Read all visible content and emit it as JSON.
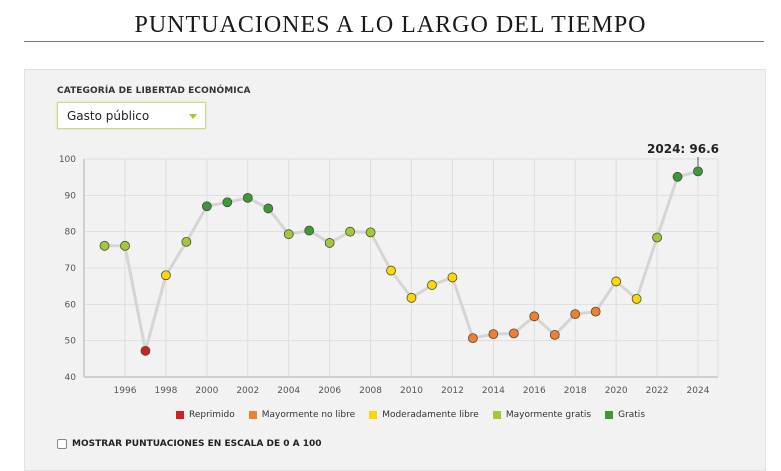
{
  "page": {
    "title": "PUNTUACIONES A LO LARGO DEL TIEMPO"
  },
  "filter": {
    "label": "CATEGORÍA DE LIBERTAD ECONÓMICA",
    "selected": "Gasto público"
  },
  "scale_toggle": {
    "label": "MOSTRAR PUNTUACIONES EN ESCALA DE 0 A 100",
    "checked": false
  },
  "colors": {
    "Reprimido": "#cc2222",
    "Mayormente no libre": "#f08030",
    "Moderadamente libre": "#ffd700",
    "Mayormente gratis": "#a3c93a",
    "Gratis": "#3a9a3a"
  },
  "chart_data": {
    "type": "line",
    "title": "PUNTUACIONES A LO LARGO DEL TIEMPO",
    "xlabel": "",
    "ylabel": "",
    "ylim": [
      40,
      100
    ],
    "xlim": [
      1994.5,
      2025
    ],
    "yticks": [
      40,
      50,
      60,
      70,
      80,
      90,
      100
    ],
    "xticks": [
      1996,
      1998,
      2000,
      2002,
      2004,
      2006,
      2008,
      2010,
      2012,
      2014,
      2016,
      2018,
      2020,
      2022,
      2024
    ],
    "grid": true,
    "legend_position": "bottom",
    "annotation": "2024: 96.6",
    "legend": [
      "Reprimido",
      "Mayormente no libre",
      "Moderadamente libre",
      "Mayormente gratis",
      "Gratis"
    ],
    "series": [
      {
        "name": "Gasto público",
        "points": [
          {
            "x": 1995,
            "y": 76.1,
            "category": "Mayormente gratis"
          },
          {
            "x": 1996,
            "y": 76.1,
            "category": "Mayormente gratis"
          },
          {
            "x": 1997,
            "y": 47.2,
            "category": "Reprimido"
          },
          {
            "x": 1998,
            "y": 68.0,
            "category": "Moderadamente libre"
          },
          {
            "x": 1999,
            "y": 77.2,
            "category": "Mayormente gratis"
          },
          {
            "x": 2000,
            "y": 87.0,
            "category": "Gratis"
          },
          {
            "x": 2001,
            "y": 88.1,
            "category": "Gratis"
          },
          {
            "x": 2002,
            "y": 89.3,
            "category": "Gratis"
          },
          {
            "x": 2003,
            "y": 86.4,
            "category": "Gratis"
          },
          {
            "x": 2004,
            "y": 79.3,
            "category": "Mayormente gratis"
          },
          {
            "x": 2005,
            "y": 80.3,
            "category": "Gratis"
          },
          {
            "x": 2006,
            "y": 76.9,
            "category": "Mayormente gratis"
          },
          {
            "x": 2007,
            "y": 80.0,
            "category": "Mayormente gratis"
          },
          {
            "x": 2008,
            "y": 79.8,
            "category": "Mayormente gratis"
          },
          {
            "x": 2009,
            "y": 69.3,
            "category": "Moderadamente libre"
          },
          {
            "x": 2010,
            "y": 61.8,
            "category": "Moderadamente libre"
          },
          {
            "x": 2011,
            "y": 65.3,
            "category": "Moderadamente libre"
          },
          {
            "x": 2012,
            "y": 67.4,
            "category": "Moderadamente libre"
          },
          {
            "x": 2013,
            "y": 50.7,
            "category": "Mayormente no libre"
          },
          {
            "x": 2014,
            "y": 51.8,
            "category": "Mayormente no libre"
          },
          {
            "x": 2015,
            "y": 52.0,
            "category": "Mayormente no libre"
          },
          {
            "x": 2016,
            "y": 56.7,
            "category": "Mayormente no libre"
          },
          {
            "x": 2017,
            "y": 51.6,
            "category": "Mayormente no libre"
          },
          {
            "x": 2018,
            "y": 57.3,
            "category": "Mayormente no libre"
          },
          {
            "x": 2019,
            "y": 58.0,
            "category": "Mayormente no libre"
          },
          {
            "x": 2020,
            "y": 66.3,
            "category": "Moderadamente libre"
          },
          {
            "x": 2021,
            "y": 61.5,
            "category": "Moderadamente libre"
          },
          {
            "x": 2022,
            "y": 78.4,
            "category": "Mayormente gratis"
          },
          {
            "x": 2023,
            "y": 95.1,
            "category": "Gratis"
          },
          {
            "x": 2024,
            "y": 96.6,
            "category": "Gratis"
          }
        ]
      }
    ]
  }
}
